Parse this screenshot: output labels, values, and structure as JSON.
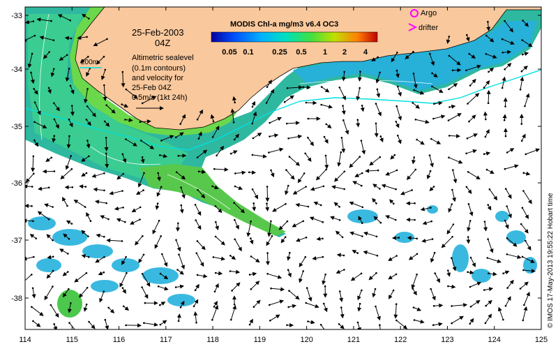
{
  "map": {
    "date": "25-Feb-2003",
    "time": "04Z",
    "scale_label": "200m",
    "description_lines": [
      "Altimetric sealevel",
      "(0.1m contours)",
      "and velocity for",
      "25-Feb 04Z",
      "0.5m/s (1kt 24h)"
    ],
    "colorbar": {
      "title": "MODIS Chl-a mg/m3 v6.4 OC3",
      "labels": [
        "0.05",
        "0.1",
        "0.25",
        "0.5",
        "1",
        "2",
        "4"
      ],
      "colors": [
        "#0000a0",
        "#0050ff",
        "#00b0ff",
        "#00e0c0",
        "#40e040",
        "#c0e000",
        "#ff8000",
        "#c00000"
      ]
    },
    "legend": {
      "argo": "Argo",
      "drifter": "drifter",
      "argo_color": "#ff00ff",
      "drifter_color": "#ff00ff"
    },
    "credit": "© IMOS 17-May-2013 19:55:22 Hobart time",
    "x_ticks": [
      "114",
      "115",
      "116",
      "117",
      "118",
      "119",
      "120",
      "121",
      "122",
      "123",
      "124",
      "125"
    ],
    "y_ticks": [
      "-33",
      "-34",
      "-35",
      "-36",
      "-37",
      "-38"
    ],
    "land_color": "#f9c89c",
    "ocean_color": "#ffffff",
    "contour_200m_color": "#00e0e0",
    "sealevel_contour_color": "#ffffff"
  }
}
